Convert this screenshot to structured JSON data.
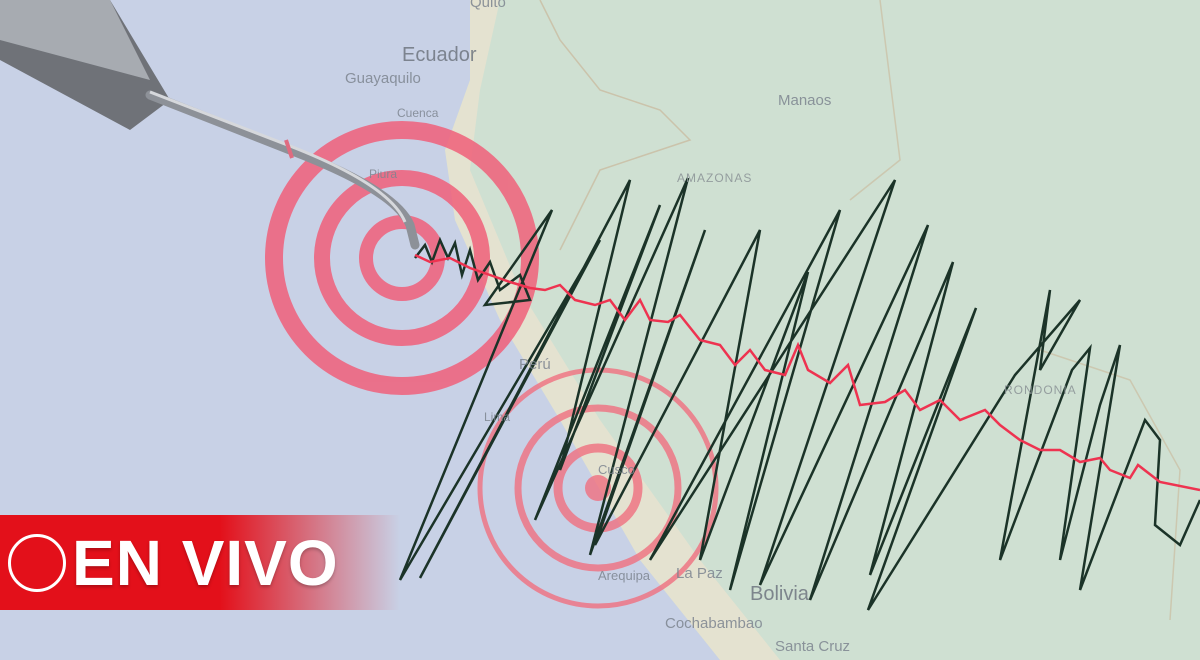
{
  "map_labels": {
    "quito": "Quito",
    "ecuador": "Ecuador",
    "guayaquil": "Guayaquilo",
    "cuenca": "Cuenca",
    "piura": "Piura",
    "manaos": "Manaos",
    "amazonas": "AMAZONAS",
    "peru": "Perú",
    "lima": "Lima",
    "cusco": "Cusco",
    "rondonia": "RONDONIA",
    "arequipa": "Arequipa",
    "la_paz": "La Paz",
    "bolivia": "Bolivia",
    "cochabamba": "Cochabambao",
    "santa_cruz": "Santa Cruz"
  },
  "badge": {
    "label": "EN VIVO",
    "color": "#e3101a"
  },
  "colors": {
    "ocean": "#c8d1e6",
    "land": "#cfe0d2",
    "coast": "#e9e2d0",
    "rings": "#f0607a",
    "trace_dark": "#1b3328",
    "trace_red": "#ee3350"
  }
}
